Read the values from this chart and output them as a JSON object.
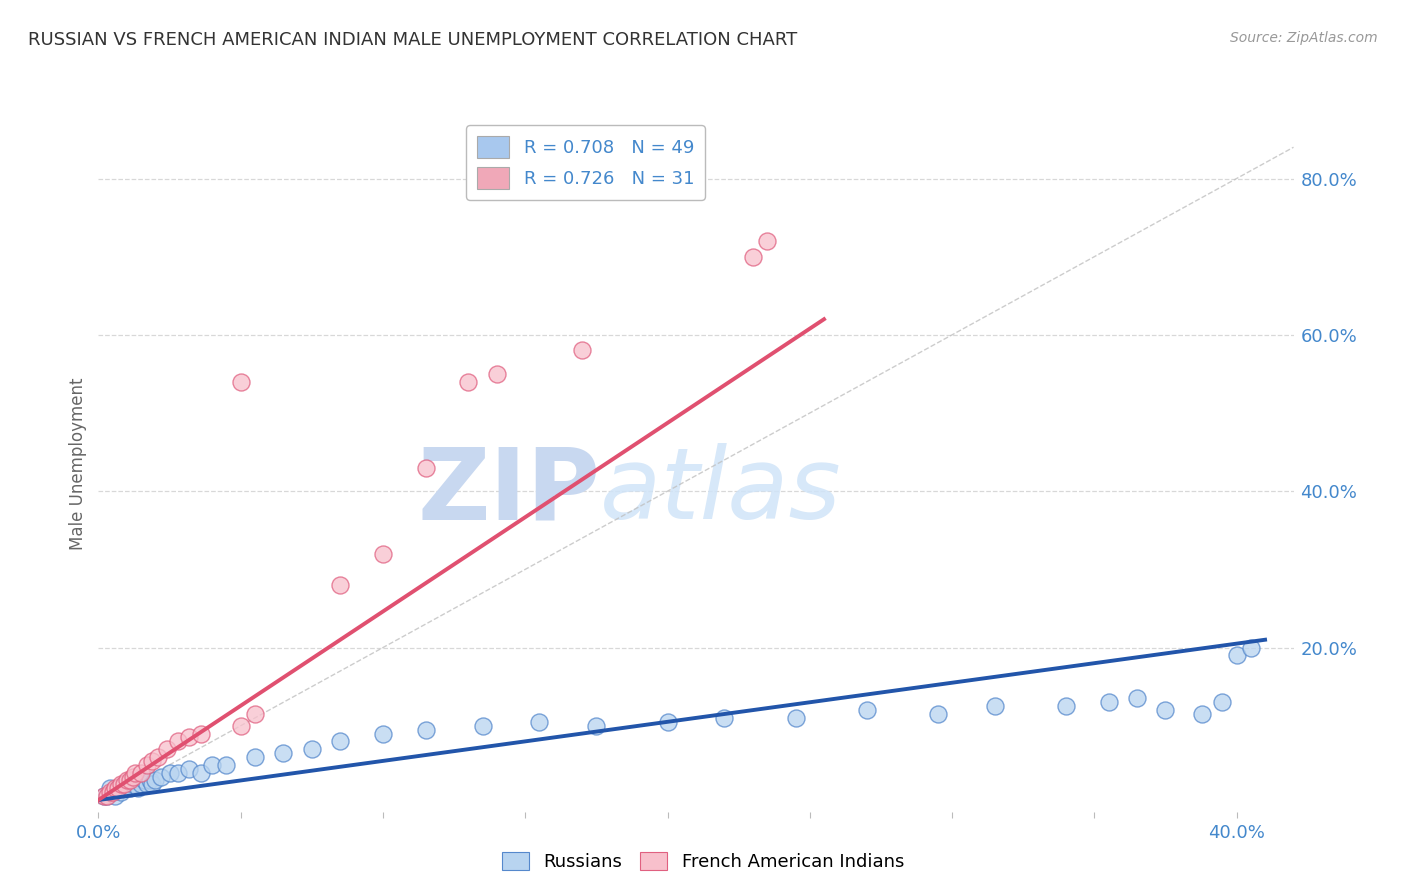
{
  "title": "RUSSIAN VS FRENCH AMERICAN INDIAN MALE UNEMPLOYMENT CORRELATION CHART",
  "source_text": "Source: ZipAtlas.com",
  "ylabel": "Male Unemployment",
  "xlim": [
    0.0,
    0.42
  ],
  "ylim": [
    -0.01,
    0.88
  ],
  "xticks": [
    0.0,
    0.05,
    0.1,
    0.15,
    0.2,
    0.25,
    0.3,
    0.35,
    0.4
  ],
  "yticks_right": [
    0.2,
    0.4,
    0.6,
    0.8
  ],
  "x_tick_labels": [
    "0.0%",
    "",
    "",
    "",
    "",
    "",
    "",
    "",
    "40.0%"
  ],
  "y_tick_labels_right": [
    "20.0%",
    "40.0%",
    "60.0%",
    "80.0%"
  ],
  "legend_entries": [
    {
      "label": "R = 0.708   N = 49",
      "color": "#a8c8ee"
    },
    {
      "label": "R = 0.726   N = 31",
      "color": "#f0a8b8"
    }
  ],
  "russians_x": [
    0.002,
    0.003,
    0.004,
    0.005,
    0.006,
    0.007,
    0.008,
    0.009,
    0.01,
    0.011,
    0.012,
    0.013,
    0.014,
    0.015,
    0.016,
    0.017,
    0.018,
    0.019,
    0.02,
    0.022,
    0.025,
    0.028,
    0.032,
    0.036,
    0.04,
    0.045,
    0.055,
    0.065,
    0.075,
    0.085,
    0.1,
    0.115,
    0.135,
    0.155,
    0.175,
    0.2,
    0.22,
    0.245,
    0.27,
    0.295,
    0.315,
    0.34,
    0.355,
    0.365,
    0.375,
    0.388,
    0.395,
    0.4,
    0.405
  ],
  "russians_y": [
    0.01,
    0.01,
    0.02,
    0.015,
    0.01,
    0.02,
    0.015,
    0.02,
    0.025,
    0.02,
    0.025,
    0.03,
    0.02,
    0.025,
    0.03,
    0.025,
    0.03,
    0.025,
    0.03,
    0.035,
    0.04,
    0.04,
    0.045,
    0.04,
    0.05,
    0.05,
    0.06,
    0.065,
    0.07,
    0.08,
    0.09,
    0.095,
    0.1,
    0.105,
    0.1,
    0.105,
    0.11,
    0.11,
    0.12,
    0.115,
    0.125,
    0.125,
    0.13,
    0.135,
    0.12,
    0.115,
    0.13,
    0.19,
    0.2
  ],
  "french_ai_x": [
    0.002,
    0.003,
    0.004,
    0.005,
    0.006,
    0.007,
    0.008,
    0.009,
    0.01,
    0.011,
    0.012,
    0.013,
    0.015,
    0.017,
    0.019,
    0.021,
    0.024,
    0.028,
    0.032,
    0.036,
    0.05,
    0.055,
    0.085,
    0.1,
    0.115,
    0.13,
    0.14,
    0.17,
    0.23,
    0.235,
    0.05
  ],
  "french_ai_y": [
    0.01,
    0.01,
    0.015,
    0.015,
    0.02,
    0.02,
    0.025,
    0.025,
    0.03,
    0.03,
    0.035,
    0.04,
    0.04,
    0.05,
    0.055,
    0.06,
    0.07,
    0.08,
    0.085,
    0.09,
    0.1,
    0.115,
    0.28,
    0.32,
    0.43,
    0.54,
    0.55,
    0.58,
    0.7,
    0.72,
    0.54
  ],
  "blue_line_x": [
    0.0,
    0.41
  ],
  "blue_line_y": [
    0.005,
    0.21
  ],
  "pink_line_x": [
    0.0,
    0.255
  ],
  "pink_line_y": [
    0.005,
    0.62
  ],
  "ref_line_x": [
    0.0,
    0.42
  ],
  "ref_line_y": [
    0.0,
    0.84
  ],
  "watermark_zip": "ZIP",
  "watermark_atlas": "atlas",
  "watermark_color": "#c8d8f0",
  "background_color": "#ffffff",
  "scatter_blue_color": "#b8d4f0",
  "scatter_blue_edge": "#5588cc",
  "scatter_pink_color": "#f8c0cc",
  "scatter_pink_edge": "#e06080",
  "blue_line_color": "#2255aa",
  "pink_line_color": "#e05070",
  "grid_color": "#d8d8d8",
  "title_color": "#333333",
  "axis_label_color": "#666666",
  "tick_color": "#4488cc",
  "ref_line_color": "#c0c0c0"
}
